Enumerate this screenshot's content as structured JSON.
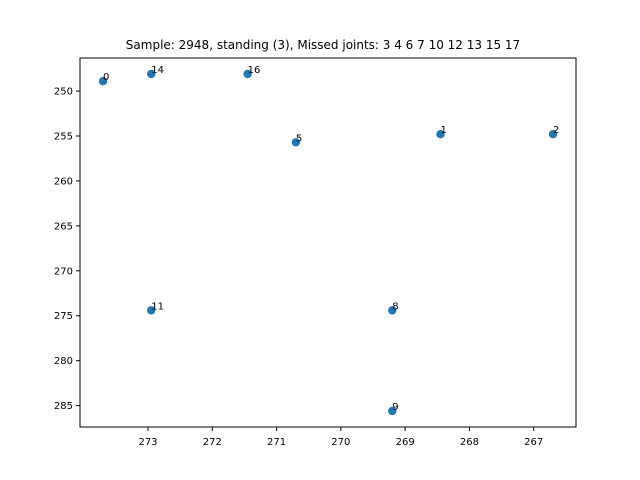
{
  "chart_data": {
    "type": "scatter",
    "title": "Sample: 2948, standing (3), Missed joints: 3  4  6  7  10  12  13  15  17",
    "xlabel": "",
    "ylabel": "",
    "x_inverted": true,
    "y_inverted": true,
    "xlim": [
      273.7,
      266.7
    ],
    "ylim": [
      247.3,
      287.5
    ],
    "xticks": [
      273,
      272,
      271,
      270,
      269,
      268,
      267
    ],
    "yticks": [
      250,
      255,
      260,
      265,
      270,
      275,
      280,
      285
    ],
    "grid": false,
    "marker_color": "#1f77b4",
    "points": [
      {
        "label": "0",
        "x": 273.7,
        "y": 248.9
      },
      {
        "label": "14",
        "x": 272.95,
        "y": 248.1
      },
      {
        "label": "16",
        "x": 271.45,
        "y": 248.1
      },
      {
        "label": "5",
        "x": 270.7,
        "y": 255.7
      },
      {
        "label": "1",
        "x": 268.45,
        "y": 254.8
      },
      {
        "label": "2",
        "x": 266.7,
        "y": 254.8
      },
      {
        "label": "11",
        "x": 272.95,
        "y": 274.4
      },
      {
        "label": "8",
        "x": 269.2,
        "y": 274.4
      },
      {
        "label": "9",
        "x": 269.2,
        "y": 285.6
      }
    ]
  }
}
